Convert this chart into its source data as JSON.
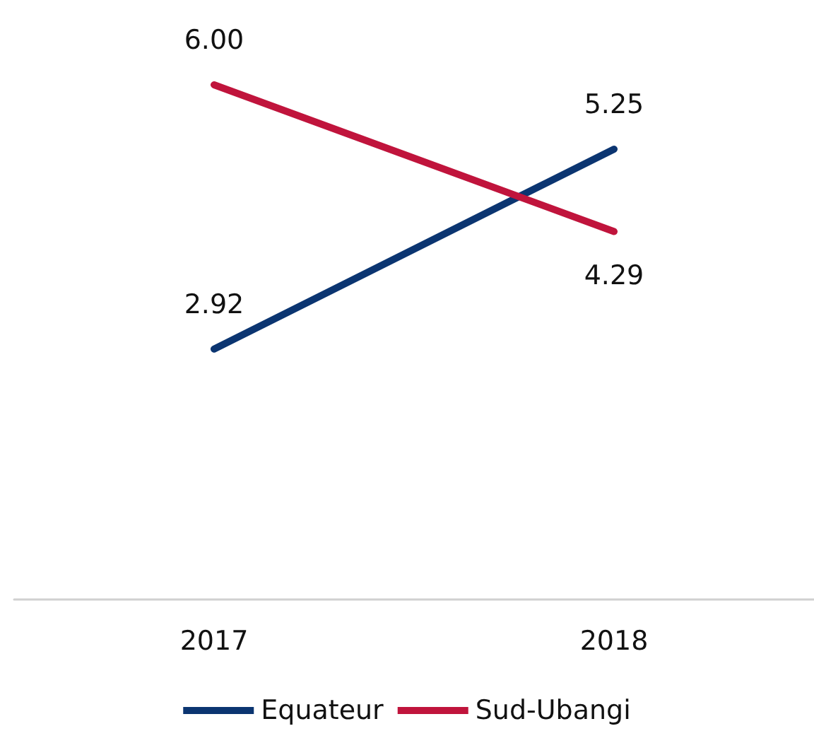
{
  "chart_data": {
    "type": "line",
    "categories": [
      "2017",
      "2018"
    ],
    "series": [
      {
        "name": "Equateur",
        "color": "#0b3571",
        "values": [
          2.92,
          5.25
        ],
        "value_labels": [
          "2.92",
          "5.25"
        ]
      },
      {
        "name": "Sud-Ubangi",
        "color": "#c0143c",
        "values": [
          6.0,
          4.29
        ],
        "value_labels": [
          "6.00",
          "4.29"
        ]
      }
    ],
    "legend": "bottom",
    "marker": "none",
    "line_style": "solid",
    "grid": false,
    "tick_labels": "x"
  }
}
